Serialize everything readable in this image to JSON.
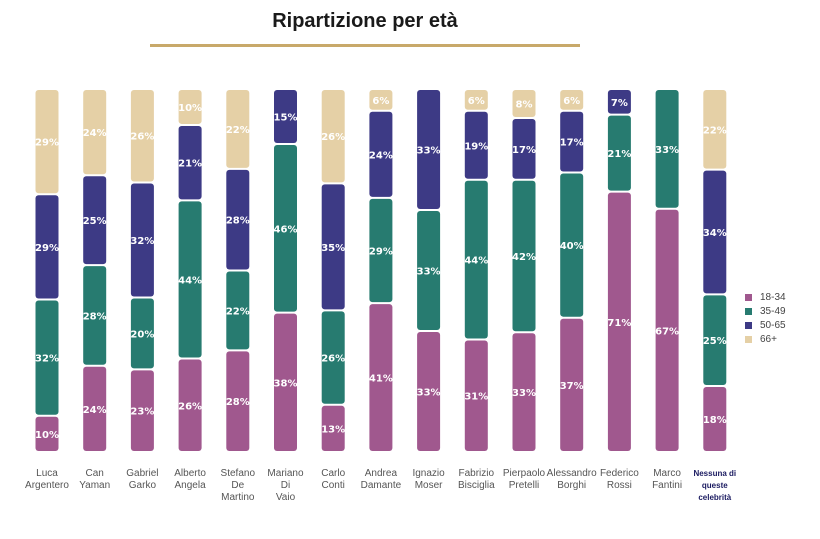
{
  "chart_data": {
    "type": "bar",
    "stacked": true,
    "title": "Ripartizione per età",
    "categories": [
      [
        "Luca",
        "Argentero"
      ],
      [
        "Can",
        "Yaman"
      ],
      [
        "Gabriel",
        "Garko"
      ],
      [
        "Alberto",
        "Angela"
      ],
      [
        "Stefano",
        "De",
        "Martino"
      ],
      [
        "Mariano",
        "Di",
        "Vaio"
      ],
      [
        "Carlo",
        "Conti"
      ],
      [
        "Andrea",
        "Damante"
      ],
      [
        "Ignazio",
        "Moser"
      ],
      [
        "Fabrizio",
        "Bisciglia"
      ],
      [
        "Pierpaolo",
        "Pretelli"
      ],
      [
        "Alessandro",
        "Borghi"
      ],
      [
        "Federico",
        "Rossi"
      ],
      [
        "Marco",
        "Fantini"
      ],
      [
        "Nessuna di",
        "queste",
        "celebrità"
      ]
    ],
    "series": [
      {
        "name": "18-34",
        "color": "#a0588e",
        "values": [
          10,
          24,
          23,
          26,
          28,
          38,
          13,
          41,
          33,
          31,
          33,
          37,
          71,
          67,
          18
        ]
      },
      {
        "name": "35-49",
        "color": "#277b70",
        "values": [
          32,
          28,
          20,
          44,
          22,
          46,
          26,
          29,
          33,
          44,
          42,
          40,
          21,
          33,
          25
        ]
      },
      {
        "name": "50-65",
        "color": "#3d3a85",
        "values": [
          29,
          25,
          32,
          21,
          28,
          15,
          35,
          24,
          33,
          19,
          17,
          17,
          7,
          0,
          34
        ]
      },
      {
        "name": "66+",
        "color": "#e5d0a6",
        "values": [
          29,
          24,
          26,
          10,
          22,
          0,
          26,
          6,
          0,
          6,
          8,
          6,
          0,
          0,
          22
        ]
      }
    ],
    "legend_position": "right",
    "grid": false
  }
}
